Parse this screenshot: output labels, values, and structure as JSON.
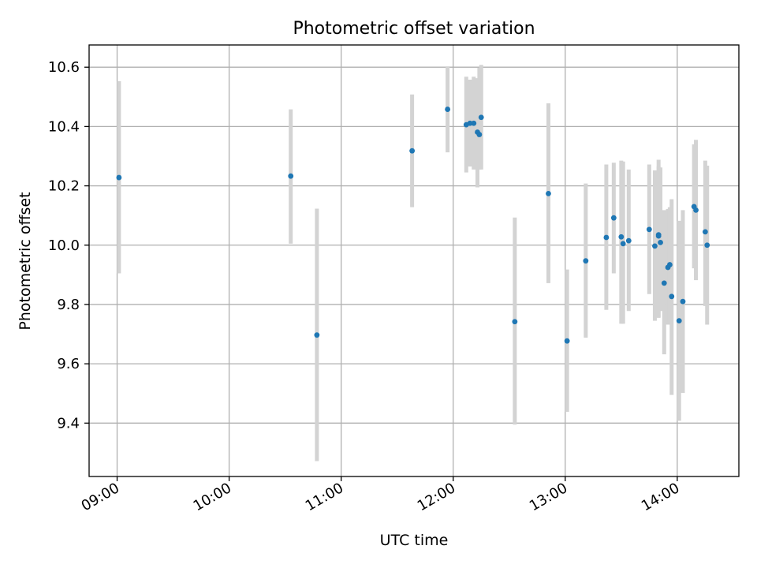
{
  "chart_data": {
    "type": "scatter",
    "title": "Photometric offset variation",
    "xlabel": "UTC time",
    "ylabel": "Photometric offset",
    "x_axis_kind": "time",
    "xlim": [
      "08:45",
      "14:33"
    ],
    "ylim": [
      9.22,
      10.675
    ],
    "x_ticks": [
      "09:00",
      "10:00",
      "11:00",
      "12:00",
      "13:00",
      "14:00"
    ],
    "y_ticks": [
      "9.4",
      "9.6",
      "9.8",
      "10.0",
      "10.2",
      "10.4",
      "10.6"
    ],
    "y_tick_values": [
      9.4,
      9.6,
      9.8,
      10.0,
      10.2,
      10.4,
      10.6
    ],
    "grid": true,
    "colors": {
      "points": "#1f77b4",
      "error_bars": "#d3d3d3",
      "grid": "#b0b0b0"
    },
    "points": [
      {
        "x": "09:01",
        "y": 10.228,
        "ylow": 9.905,
        "yhigh": 10.553
      },
      {
        "x": "10:33",
        "y": 10.233,
        "ylow": 10.005,
        "yhigh": 10.458
      },
      {
        "x": "10:47",
        "y": 9.697,
        "ylow": 9.272,
        "yhigh": 10.123
      },
      {
        "x": "11:38",
        "y": 10.318,
        "ylow": 10.128,
        "yhigh": 10.508
      },
      {
        "x": "11:57",
        "y": 10.458,
        "ylow": 10.313,
        "yhigh": 10.603
      },
      {
        "x": "12:07",
        "y": 10.406,
        "ylow": 10.245,
        "yhigh": 10.568
      },
      {
        "x": "12:09",
        "y": 10.411,
        "ylow": 10.265,
        "yhigh": 10.558
      },
      {
        "x": "12:11",
        "y": 10.411,
        "ylow": 10.255,
        "yhigh": 10.568
      },
      {
        "x": "12:13",
        "y": 10.381,
        "ylow": 10.195,
        "yhigh": 10.563
      },
      {
        "x": "12:14",
        "y": 10.373,
        "ylow": 10.255,
        "yhigh": 10.598
      },
      {
        "x": "12:15",
        "y": 10.431,
        "ylow": 10.255,
        "yhigh": 10.608
      },
      {
        "x": "12:33",
        "y": 9.742,
        "ylow": 9.395,
        "yhigh": 10.093
      },
      {
        "x": "12:51",
        "y": 10.174,
        "ylow": 9.872,
        "yhigh": 10.478
      },
      {
        "x": "13:01",
        "y": 9.677,
        "ylow": 9.438,
        "yhigh": 9.918
      },
      {
        "x": "13:11",
        "y": 9.947,
        "ylow": 9.688,
        "yhigh": 10.208
      },
      {
        "x": "13:22",
        "y": 10.026,
        "ylow": 9.782,
        "yhigh": 10.272
      },
      {
        "x": "13:26",
        "y": 10.092,
        "ylow": 9.905,
        "yhigh": 10.278
      },
      {
        "x": "13:30",
        "y": 10.028,
        "ylow": 9.735,
        "yhigh": 10.285
      },
      {
        "x": "13:31",
        "y": 10.005,
        "ylow": 9.735,
        "yhigh": 10.282
      },
      {
        "x": "13:34",
        "y": 10.015,
        "ylow": 9.778,
        "yhigh": 10.255
      },
      {
        "x": "13:45",
        "y": 10.053,
        "ylow": 9.835,
        "yhigh": 10.272
      },
      {
        "x": "13:48",
        "y": 9.997,
        "ylow": 9.745,
        "yhigh": 10.252
      },
      {
        "x": "13:50",
        "y": 10.035,
        "ylow": 9.755,
        "yhigh": 10.288
      },
      {
        "x": "13:50",
        "y": 10.031,
        "ylow": 9.758,
        "yhigh": 10.265
      },
      {
        "x": "13:51",
        "y": 10.009,
        "ylow": 9.778,
        "yhigh": 10.262
      },
      {
        "x": "13:53",
        "y": 9.872,
        "ylow": 9.632,
        "yhigh": 10.118
      },
      {
        "x": "13:55",
        "y": 9.925,
        "ylow": 9.732,
        "yhigh": 10.122
      },
      {
        "x": "13:56",
        "y": 9.934,
        "ylow": 9.742,
        "yhigh": 10.128
      },
      {
        "x": "13:57",
        "y": 9.827,
        "ylow": 9.495,
        "yhigh": 10.155
      },
      {
        "x": "14:01",
        "y": 9.745,
        "ylow": 9.408,
        "yhigh": 10.082
      },
      {
        "x": "14:03",
        "y": 9.81,
        "ylow": 9.502,
        "yhigh": 10.118
      },
      {
        "x": "14:09",
        "y": 10.13,
        "ylow": 9.922,
        "yhigh": 10.34
      },
      {
        "x": "14:10",
        "y": 10.118,
        "ylow": 9.882,
        "yhigh": 10.355
      },
      {
        "x": "14:15",
        "y": 10.045,
        "ylow": 9.795,
        "yhigh": 10.285
      },
      {
        "x": "14:16",
        "y": 10.0,
        "ylow": 9.732,
        "yhigh": 10.268
      }
    ]
  }
}
